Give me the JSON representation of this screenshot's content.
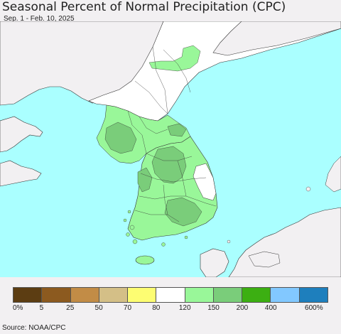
{
  "title": "Seasonal Percent of Normal Precipitation (CPC)",
  "subtitle": "Sep. 1 - Feb. 10, 2025",
  "source": "Source: NOAA/CPC",
  "colors": {
    "ocean": "#aaffff",
    "land_no_data": "#f2f0f2",
    "border": "#333333"
  },
  "legend": {
    "swatches": [
      {
        "range": "0-5",
        "color": "#5c3d12"
      },
      {
        "range": "5-25",
        "color": "#8c5a1f"
      },
      {
        "range": "25-50",
        "color": "#c28c46"
      },
      {
        "range": "50-70",
        "color": "#d4bf87"
      },
      {
        "range": "70-80",
        "color": "#fdfd72"
      },
      {
        "range": "80-120",
        "color": "#ffffff"
      },
      {
        "range": "120-150",
        "color": "#99f799"
      },
      {
        "range": "150-200",
        "color": "#7acd7a"
      },
      {
        "range": "200-400",
        "color": "#3caf12"
      },
      {
        "range": "400-600",
        "color": "#82c8ff"
      },
      {
        "range": "600+",
        "color": "#1e7fbd"
      }
    ],
    "labels": [
      "0%",
      "5",
      "25",
      "50",
      "70",
      "80",
      "120",
      "150",
      "200",
      "400",
      "600%"
    ]
  }
}
